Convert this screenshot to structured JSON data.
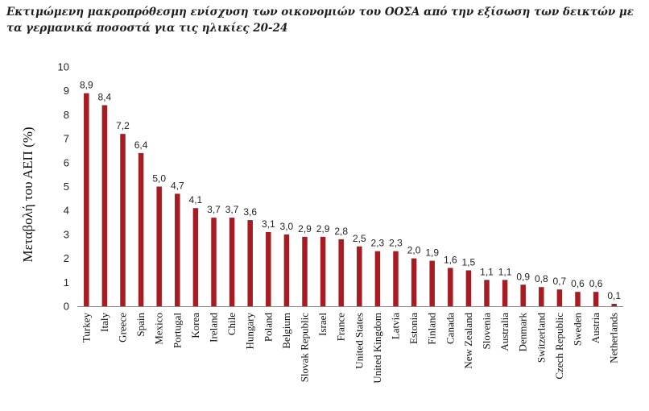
{
  "chart_data": {
    "type": "bar",
    "title": "Εκτιμώμενη μακροπρόθεσμη ενίσχυση των οικονομιών του ΟΟΣΑ από την εξίσωση των δεικτών με τα γερμανικά ποσοστά για τις ηλικίες 20-24",
    "ylabel": "Μεταβολή του ΑΕΠ (%)",
    "xlabel": "",
    "ylim": [
      0,
      10
    ],
    "yticks": [
      "0",
      "1",
      "2",
      "3",
      "4",
      "5",
      "6",
      "7",
      "8",
      "9",
      "10"
    ],
    "grid": false,
    "bar_color": "#a61c22",
    "categories": [
      "Turkey",
      "Italy",
      "Greece",
      "Spain",
      "Mexico",
      "Portugal",
      "Korea",
      "Ireland",
      "Chile",
      "Hungary",
      "Poland",
      "Belgium",
      "Slovak Republic",
      "Israel",
      "France",
      "United States",
      "United Kingdom",
      "Latvia",
      "Estonia",
      "Finland",
      "Canada",
      "New Zealand",
      "Slovenia",
      "Australia",
      "Denmark",
      "Switzerland",
      "Czech Republic",
      "Sweden",
      "Austria",
      "Netherlands"
    ],
    "values": [
      8.9,
      8.4,
      7.2,
      6.4,
      5.0,
      4.7,
      4.1,
      3.7,
      3.7,
      3.6,
      3.1,
      3.0,
      2.9,
      2.9,
      2.8,
      2.5,
      2.3,
      2.3,
      2.0,
      1.9,
      1.6,
      1.5,
      1.1,
      1.1,
      0.9,
      0.8,
      0.7,
      0.6,
      0.6,
      0.1
    ],
    "data_labels": [
      "8,9",
      "8,4",
      "7,2",
      "6,4",
      "5,0",
      "4,7",
      "4,1",
      "3,7",
      "3,7",
      "3,6",
      "3,1",
      "3,0",
      "2,9",
      "2,9",
      "2,8",
      "2,5",
      "2,3",
      "2,3",
      "2,0",
      "1,9",
      "1,6",
      "1,5",
      "1,1",
      "1,1",
      "0,9",
      "0,8",
      "0,7",
      "0,6",
      "0,6",
      "0,1"
    ]
  }
}
